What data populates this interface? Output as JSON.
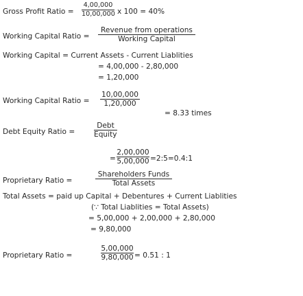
{
  "gross_profit": {
    "label": "Gross Profit Ratio =",
    "num": "4,00,000",
    "den": "10,00,000",
    "tail": "x 100 = 40%"
  },
  "wc_ratio_formula": {
    "label": "Working Capital Ratio =",
    "num": "Revenue from operations",
    "den": "Working Capital"
  },
  "wc_calc": {
    "line1": "Working Capital = Current Assets - Current Liablities",
    "line2": "= 4,00,000 - 2,80,000",
    "line3": "= 1,20,000"
  },
  "wc_ratio_calc": {
    "label": "Working Capital Ratio =",
    "num": "10,00,000",
    "den": "1,20,000",
    "result": "= 8.33 times"
  },
  "debt_equity_formula": {
    "label": "Debt Equity Ratio =",
    "num": "Debt",
    "den": "Equity"
  },
  "debt_equity_calc": {
    "prefix": "=",
    "num": "2,00,000",
    "den": "5,00,000",
    "tail": "=2:5=0.4:1"
  },
  "proprietary_formula": {
    "label": "Proprietary Ratio =",
    "num": "Shareholders Funds",
    "den": "Total Assets"
  },
  "total_assets": {
    "line1": "Total Assets = paid up Capital + Debentures + Current Liablities",
    "line2": "(∵ Total Liablities = Total Assets)",
    "line3": "= 5,00,000 + 2,00,000 + 2,80,000",
    "line4": "= 9,80,000"
  },
  "proprietary_calc": {
    "label": "Proprietary Ratio =",
    "num": "5,00,000",
    "den": "9,80,000",
    "tail": "= 0.51 : 1"
  }
}
